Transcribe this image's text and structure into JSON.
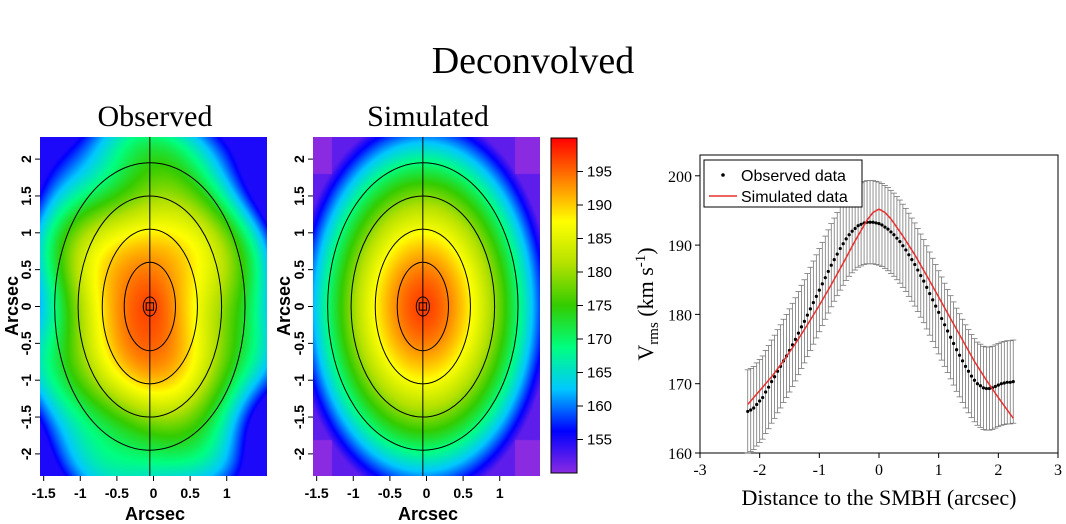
{
  "title": "Deconvolved",
  "panels": {
    "observed": {
      "title": "Observed"
    },
    "simulated": {
      "title": "Simulated"
    }
  },
  "maps_axes": {
    "xlabel": "Arcsec",
    "ylabel": "Arcsec",
    "xlim": [
      -1.55,
      1.55
    ],
    "ylim": [
      -2.3,
      2.3
    ],
    "xticks": [
      "-1.5",
      "-1",
      "-0.5",
      "0",
      "0.5",
      "1"
    ],
    "xtick_values": [
      -1.5,
      -1,
      -0.5,
      0,
      0.5,
      1
    ],
    "yticks": [
      "-2",
      "-1.5",
      "-1",
      "-0.5",
      "0",
      "0.5",
      "1",
      "1.5",
      "2"
    ],
    "ytick_values": [
      -2,
      -1.5,
      -1,
      -0.5,
      0,
      0.5,
      1,
      1.5,
      2
    ]
  },
  "colorbar": {
    "range": [
      150,
      200
    ],
    "ticks": [
      "155",
      "160",
      "165",
      "170",
      "175",
      "180",
      "185",
      "190",
      "195"
    ],
    "tick_values": [
      155,
      160,
      165,
      170,
      175,
      180,
      185,
      190,
      195
    ],
    "colors": [
      "#8a2be2",
      "#0000ff",
      "#00c8ff",
      "#00ff80",
      "#33cc00",
      "#b4e100",
      "#ffff00",
      "#ff8000",
      "#ff0000"
    ]
  },
  "chart_data": [
    {
      "type": "heatmap",
      "name": "observed",
      "title": "Observed",
      "xlabel": "Arcsec",
      "ylabel": "Arcsec",
      "contour_semi_axes": [
        [
          0.05,
          0.13
        ],
        [
          0.35,
          0.6
        ],
        [
          0.65,
          1.05
        ],
        [
          0.98,
          1.5
        ],
        [
          1.3,
          1.95
        ]
      ],
      "center": [
        -0.05,
        0.0
      ],
      "peak": 197,
      "min": 155
    },
    {
      "type": "heatmap",
      "name": "simulated",
      "title": "Simulated",
      "xlabel": "Arcsec",
      "ylabel": "Arcsec",
      "contour_semi_axes": [
        [
          0.05,
          0.13
        ],
        [
          0.35,
          0.6
        ],
        [
          0.65,
          1.05
        ],
        [
          0.98,
          1.5
        ],
        [
          1.3,
          1.95
        ]
      ],
      "center": [
        -0.05,
        0.0
      ],
      "peak": 197,
      "min": 152
    },
    {
      "type": "line",
      "title": "",
      "xlabel": "Distance to the SMBH (arcsec)",
      "ylabel": "V",
      "ylabel_sub": "rms",
      "ylabel_units": "(km s",
      "ylabel_units_sup": "-1",
      "ylabel_units_end": ")",
      "xlim": [
        -3,
        3
      ],
      "ylim": [
        160,
        203
      ],
      "xticks": [
        -3,
        -2,
        -1,
        0,
        1,
        2,
        3
      ],
      "yticks": [
        160,
        170,
        180,
        190,
        200
      ],
      "legend": [
        "Observed data",
        "Simulated data"
      ],
      "legend_position": "top-left",
      "observed": {
        "x": [
          -2.2,
          -2.15,
          -2.1,
          -2.05,
          -2.0,
          -1.95,
          -1.9,
          -1.85,
          -1.8,
          -1.75,
          -1.7,
          -1.65,
          -1.6,
          -1.55,
          -1.5,
          -1.45,
          -1.4,
          -1.35,
          -1.3,
          -1.25,
          -1.2,
          -1.15,
          -1.1,
          -1.05,
          -1.0,
          -0.95,
          -0.9,
          -0.85,
          -0.8,
          -0.75,
          -0.7,
          -0.65,
          -0.6,
          -0.55,
          -0.5,
          -0.45,
          -0.4,
          -0.35,
          -0.3,
          -0.25,
          -0.2,
          -0.15,
          -0.1,
          -0.05,
          0.0,
          0.05,
          0.1,
          0.15,
          0.2,
          0.25,
          0.3,
          0.35,
          0.4,
          0.45,
          0.5,
          0.55,
          0.6,
          0.65,
          0.7,
          0.75,
          0.8,
          0.85,
          0.9,
          0.95,
          1.0,
          1.05,
          1.1,
          1.15,
          1.2,
          1.25,
          1.3,
          1.35,
          1.4,
          1.45,
          1.5,
          1.55,
          1.6,
          1.65,
          1.7,
          1.75,
          1.8,
          1.85,
          1.9,
          1.95,
          2.0,
          2.05,
          2.1,
          2.15,
          2.2,
          2.25
        ],
        "y": [
          166.0,
          166.2,
          166.5,
          167.0,
          167.5,
          168.0,
          168.8,
          169.5,
          170.3,
          171.0,
          171.8,
          172.5,
          173.3,
          174.0,
          174.8,
          175.6,
          176.4,
          177.3,
          178.2,
          179.0,
          179.9,
          180.8,
          181.7,
          182.6,
          183.5,
          184.4,
          185.3,
          186.2,
          187.1,
          187.9,
          188.7,
          189.5,
          190.2,
          190.9,
          191.5,
          192.0,
          192.4,
          192.8,
          193.0,
          193.2,
          193.3,
          193.3,
          193.3,
          193.2,
          193.1,
          192.9,
          192.6,
          192.3,
          191.9,
          191.5,
          191.0,
          190.5,
          189.9,
          189.3,
          188.6,
          187.9,
          187.2,
          186.4,
          185.6,
          184.8,
          183.9,
          183.0,
          182.1,
          181.2,
          180.3,
          179.4,
          178.5,
          177.6,
          176.7,
          175.8,
          174.9,
          174.1,
          173.3,
          172.5,
          171.8,
          171.1,
          170.5,
          170.0,
          169.7,
          169.4,
          169.3,
          169.3,
          169.4,
          169.6,
          169.8,
          170.0,
          170.1,
          170.2,
          170.2,
          170.3
        ],
        "yerr": 6
      },
      "simulated": {
        "x": [
          -2.2,
          -2.0,
          -1.8,
          -1.6,
          -1.4,
          -1.2,
          -1.0,
          -0.8,
          -0.6,
          -0.4,
          -0.2,
          -0.1,
          0.0,
          0.1,
          0.2,
          0.4,
          0.6,
          0.8,
          1.0,
          1.2,
          1.4,
          1.6,
          1.8,
          2.0,
          2.25
        ],
        "y": [
          167.0,
          169.0,
          171.0,
          173.3,
          175.8,
          178.5,
          181.3,
          184.3,
          187.4,
          190.6,
          193.6,
          194.7,
          195.2,
          194.7,
          193.8,
          191.3,
          188.6,
          185.6,
          182.5,
          179.4,
          176.3,
          173.2,
          170.5,
          168.0,
          165.0
        ]
      }
    }
  ]
}
